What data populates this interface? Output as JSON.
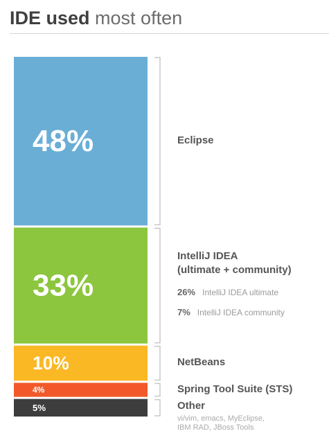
{
  "title": {
    "bold": "IDE used",
    "light": "most often"
  },
  "colors": {
    "eclipse": "#6aaed6",
    "intellij": "#8cc63f",
    "netbeans": "#fbb825",
    "sts": "#f1592a",
    "other": "#3d3d3d"
  },
  "chart_data": {
    "type": "bar",
    "stacked": true,
    "title": "IDE used most often",
    "categories": [
      "Eclipse",
      "IntelliJ IDEA (ultimate + community)",
      "NetBeans",
      "Spring Tool Suite (STS)",
      "Other"
    ],
    "values": [
      48,
      33,
      10,
      4,
      5
    ],
    "value_labels": [
      "48%",
      "33%",
      "10%",
      "4%",
      "5%"
    ],
    "label_lines": [
      [
        "Eclipse"
      ],
      [
        "IntelliJ IDEA",
        "(ultimate + community)"
      ],
      [
        "NetBeans"
      ],
      [
        "Spring Tool Suite (STS)"
      ],
      [
        "Other"
      ]
    ],
    "breakdown": [
      {
        "percent": "26%",
        "name": "IntelliJ IDEA ultimate"
      },
      {
        "percent": "7%",
        "name": "IntelliJ IDEA community"
      }
    ],
    "other_note": [
      "vi/vim, emacs, MyEclipse,",
      "IBM RAD, JBoss Tools"
    ]
  }
}
